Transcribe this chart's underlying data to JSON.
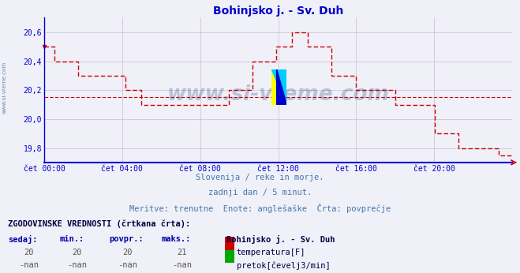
{
  "title": "Bohinjsko j. - Sv. Duh",
  "title_color": "#0000cc",
  "bg_color": "#f0f0f8",
  "plot_bg_color": "#f0f0f8",
  "grid_color": "#ccbbcc",
  "axis_color": "#0000cc",
  "line_color": "#cc0000",
  "avg_value": 20.15,
  "watermark": "www.si-vreme.com",
  "watermark_color": "#1a3a6e",
  "subtitle1": "Slovenija / reke in morje.",
  "subtitle2": "zadnji dan / 5 minut.",
  "subtitle3": "Meritve: trenutne  Enote: anglešaške  Črta: povprečje",
  "subtitle_color": "#4477aa",
  "footer_header": "ZGODOVINSKE VREDNOSTI (črtkana črta):",
  "col_headers": [
    "sedaj:",
    "min.:",
    "povpr.:",
    "maks.:"
  ],
  "row1_vals": [
    "20",
    "20",
    "20",
    "21"
  ],
  "row2_vals": [
    "-nan",
    "-nan",
    "-nan",
    "-nan"
  ],
  "legend_label1": "temperatura[F]",
  "legend_label2": "pretok[čevelj3/min]",
  "legend_color1": "#cc0000",
  "legend_color2": "#00aa00",
  "station_label": "Bohinjsko j. - Sv. Duh",
  "ylim": [
    19.7,
    20.7
  ],
  "yticks": [
    19.8,
    20.0,
    20.2,
    20.4,
    20.6
  ],
  "ytick_labels": [
    "19,8",
    "20,0",
    "20,2",
    "20,4",
    "20,6"
  ],
  "xtick_labels": [
    "čet 00:00",
    "čet 04:00",
    "čet 08:00",
    "čet 12:00",
    "čet 16:00",
    "čet 20:00"
  ],
  "left_label": "www.si-vreme.com",
  "temp_data": [
    20.5,
    20.5,
    20.5,
    20.5,
    20.5,
    20.4,
    20.4,
    20.4,
    20.4,
    20.4,
    20.4,
    20.4,
    20.4,
    20.4,
    20.4,
    20.4,
    20.4,
    20.3,
    20.3,
    20.3,
    20.3,
    20.3,
    20.3,
    20.3,
    20.3,
    20.3,
    20.3,
    20.3,
    20.3,
    20.3,
    20.3,
    20.3,
    20.3,
    20.3,
    20.3,
    20.3,
    20.3,
    20.3,
    20.3,
    20.3,
    20.3,
    20.2,
    20.2,
    20.2,
    20.2,
    20.2,
    20.2,
    20.2,
    20.2,
    20.1,
    20.1,
    20.1,
    20.1,
    20.1,
    20.1,
    20.1,
    20.1,
    20.1,
    20.1,
    20.1,
    20.1,
    20.1,
    20.1,
    20.1,
    20.1,
    20.1,
    20.1,
    20.1,
    20.1,
    20.1,
    20.1,
    20.1,
    20.1,
    20.1,
    20.1,
    20.1,
    20.1,
    20.1,
    20.1,
    20.1,
    20.1,
    20.1,
    20.1,
    20.1,
    20.1,
    20.1,
    20.1,
    20.1,
    20.1,
    20.1,
    20.1,
    20.1,
    20.1,
    20.2,
    20.2,
    20.2,
    20.2,
    20.2,
    20.2,
    20.2,
    20.2,
    20.2,
    20.2,
    20.2,
    20.2,
    20.4,
    20.4,
    20.4,
    20.4,
    20.4,
    20.4,
    20.4,
    20.4,
    20.4,
    20.4,
    20.4,
    20.4,
    20.5,
    20.5,
    20.5,
    20.5,
    20.5,
    20.5,
    20.5,
    20.5,
    20.6,
    20.6,
    20.6,
    20.6,
    20.6,
    20.6,
    20.6,
    20.6,
    20.5,
    20.5,
    20.5,
    20.5,
    20.5,
    20.5,
    20.5,
    20.5,
    20.5,
    20.5,
    20.5,
    20.5,
    20.3,
    20.3,
    20.3,
    20.3,
    20.3,
    20.3,
    20.3,
    20.3,
    20.3,
    20.3,
    20.3,
    20.3,
    20.2,
    20.2,
    20.2,
    20.2,
    20.2,
    20.2,
    20.2,
    20.2,
    20.2,
    20.2,
    20.2,
    20.2,
    20.2,
    20.2,
    20.2,
    20.2,
    20.2,
    20.2,
    20.2,
    20.2,
    20.1,
    20.1,
    20.1,
    20.1,
    20.1,
    20.1,
    20.1,
    20.1,
    20.1,
    20.1,
    20.1,
    20.1,
    20.1,
    20.1,
    20.1,
    20.1,
    20.1,
    20.1,
    20.1,
    20.1,
    19.9,
    19.9,
    19.9,
    19.9,
    19.9,
    19.9,
    19.9,
    19.9,
    19.9,
    19.9,
    19.9,
    19.9,
    19.8,
    19.8,
    19.8,
    19.8,
    19.8,
    19.8,
    19.8,
    19.8,
    19.8,
    19.8,
    19.8,
    19.8,
    19.8,
    19.8,
    19.8,
    19.8,
    19.8,
    19.8,
    19.8,
    19.8,
    19.75,
    19.75,
    19.75,
    19.75,
    19.75,
    19.75,
    19.75,
    19.75
  ]
}
